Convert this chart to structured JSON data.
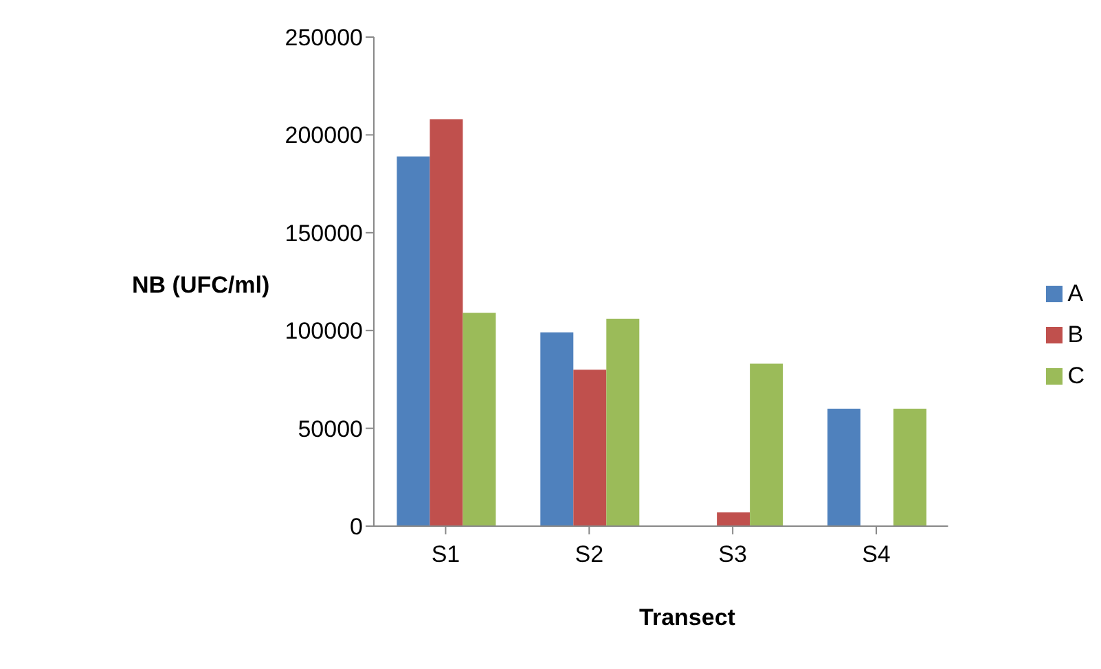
{
  "chart_data": {
    "type": "bar",
    "xlabel": "Transect",
    "ylabel": "NB (UFC/ml)",
    "categories": [
      "S1",
      "S2",
      "S3",
      "S4"
    ],
    "series": [
      {
        "name": "A",
        "color": "#4f81bd",
        "values": [
          189000,
          99000,
          0,
          60000
        ]
      },
      {
        "name": "B",
        "color": "#c0504d",
        "values": [
          208000,
          80000,
          7000,
          0
        ]
      },
      {
        "name": "C",
        "color": "#9bbb59",
        "values": [
          109000,
          106000,
          83000,
          60000
        ]
      }
    ],
    "ylim": [
      0,
      250000
    ],
    "yticks": [
      0,
      50000,
      100000,
      150000,
      200000,
      250000
    ],
    "grid": false,
    "legend": "right"
  }
}
